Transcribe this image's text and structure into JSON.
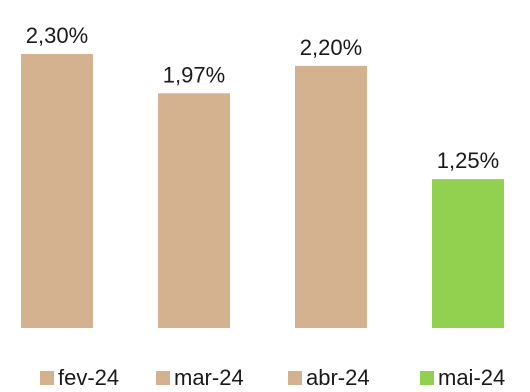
{
  "chart_data": {
    "type": "bar",
    "categories": [
      "fev-24",
      "mar-24",
      "abr-24",
      "mai-24"
    ],
    "values": [
      2.3,
      1.97,
      2.2,
      1.25
    ],
    "value_labels": [
      "2,30%",
      "1,97%",
      "2,20%",
      "1,25%"
    ],
    "colors": [
      "#d4b28f",
      "#d4b28f",
      "#d4b28f",
      "#92d050"
    ],
    "ylim": [
      0,
      2.3
    ],
    "grid": false,
    "legend_position": "bottom",
    "title": "",
    "xlabel": "",
    "ylabel": ""
  },
  "legend": {
    "items": [
      {
        "label": "fev-24",
        "color": "#d4b28f"
      },
      {
        "label": "mar-24",
        "color": "#d4b28f"
      },
      {
        "label": "abr-24",
        "color": "#d4b28f"
      },
      {
        "label": "mai-24",
        "color": "#92d050"
      }
    ]
  }
}
